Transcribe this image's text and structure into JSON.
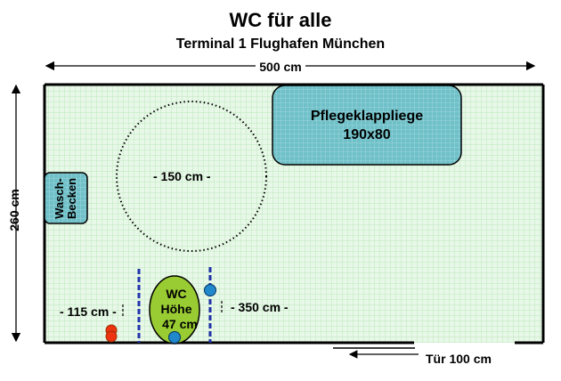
{
  "title": "WC für alle",
  "subtitle": "Terminal 1 Flughafen München",
  "dimensions": {
    "width": "500 cm",
    "height": "260 cm",
    "turning_circle": "- 150 cm -",
    "left_distance": "- 115 cm -",
    "right_distance": "- 350 cm -",
    "door": "Tür 100 cm"
  },
  "fixtures": {
    "changing_table": {
      "line1": "Pflegeklappliege",
      "line2": "190x80"
    },
    "sink": {
      "line1": "Wasch-",
      "line2": "Becken"
    },
    "toilet": {
      "line1": "WC",
      "line2": "Höhe",
      "line3": "47 cm"
    }
  },
  "colors": {
    "floor": "#e8f8e8",
    "floor_grid": "#b8e4b8",
    "changing_table": "#6fc0c8",
    "sink": "#6fc0c8",
    "toilet": "#99cc33",
    "grab_bar": "#2233aa",
    "red_marker": "#ee3311",
    "blue_marker": "#2288cc"
  }
}
